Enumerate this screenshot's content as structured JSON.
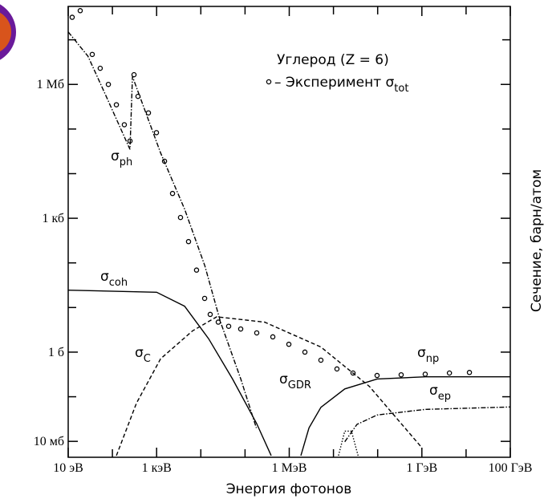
{
  "chart_data": {
    "type": "line",
    "x_title": "Энергия фотонов",
    "y_title": "Сечение, барн/атом",
    "annotation": "Углерод (Z = 6)",
    "xscale": "log",
    "yscale": "log",
    "xlim": [
      10,
      100000000000
    ],
    "ylim": [
      0.0044,
      56000000
    ],
    "xticks": [
      {
        "value": 10,
        "label": "10 эВ"
      },
      {
        "value": 1000,
        "label": "1 кэВ"
      },
      {
        "value": 1000000,
        "label": "1 МэВ"
      },
      {
        "value": 1000000000,
        "label": "1 ГэВ"
      },
      {
        "value": 100000000000,
        "label": "100 ГэВ"
      }
    ],
    "xminor": [
      100,
      10000,
      100000,
      10000000,
      100000000,
      10000000000
    ],
    "yticks": [
      {
        "value": 0.01,
        "label": "10 мб"
      },
      {
        "value": 1,
        "label": "1 б"
      },
      {
        "value": 1000,
        "label": "1 кб"
      },
      {
        "value": 1000000,
        "label": "1 Мб"
      }
    ],
    "yminor": [
      0.1,
      10,
      100,
      10000,
      100000,
      10000000
    ],
    "series": [
      {
        "name": "– Эксперимент σ",
        "sub": "tot",
        "style": "markers",
        "color": "#000000",
        "x": [
          12.3,
          18.7,
          35,
          53,
          81,
          123,
          186,
          250,
          308,
          379,
          653,
          991,
          1510,
          2290,
          3470,
          5270,
          8000,
          12200,
          16300,
          24800,
          42600,
          79800,
          184000,
          425000,
          980000,
          2260000,
          5200000,
          12000000,
          27700000,
          97000000,
          340000000,
          1190000000,
          4200000000,
          11900000000
        ],
        "values": [
          32000000,
          45000000,
          4700000,
          2300000,
          1000000,
          350000,
          125000,
          54000,
          1650000,
          540000,
          230000,
          83000,
          19000,
          3600,
          1040,
          300,
          69,
          16,
          7.0,
          4.7,
          3.8,
          3.3,
          2.7,
          2.2,
          1.5,
          1.0,
          0.66,
          0.42,
          0.34,
          0.3,
          0.31,
          0.32,
          0.34,
          0.35
        ]
      },
      {
        "name": "σ",
        "sub": "ph",
        "style": "dashdot",
        "color": "#000000",
        "x": [
          10,
          28,
          66,
          250,
          284,
          1230,
          4300,
          12300,
          28000,
          80000,
          180000
        ],
        "values": [
          15000000,
          4300000,
          660000,
          35000,
          1500000,
          29000,
          1600,
          86,
          4.7,
          0.25,
          0.02
        ]
      },
      {
        "name": "σ",
        "sub": "coh",
        "style": "solid",
        "color": "#000000",
        "x": [
          10,
          1000,
          4300,
          15000,
          52000,
          183000,
          390000
        ],
        "values": [
          24.5,
          22,
          10.7,
          2.0,
          0.25,
          0.025,
          0.0048
        ]
      },
      {
        "name": "σ",
        "sub": "C",
        "style": "dashed",
        "color": "#000000",
        "x": [
          123,
          350,
          1230,
          6500,
          23000,
          280000,
          5200000,
          65000000,
          1000000000
        ],
        "values": [
          0.0048,
          0.072,
          0.71,
          3.0,
          6.2,
          4.7,
          1.3,
          0.17,
          0.0072
        ]
      },
      {
        "name": "σ",
        "sub": "GDR",
        "style": "dotted",
        "color": "#000000",
        "x": [
          13000000,
          18000000,
          25500000,
          36000000
        ],
        "values": [
          0.0048,
          0.017,
          0.017,
          0.0048
        ]
      },
      {
        "name": "σ",
        "sub": "np",
        "style": "solid",
        "color": "#000000",
        "x": [
          1830000,
          2800000,
          5200000,
          18000000,
          97000000,
          1200000000,
          100000000000
        ],
        "values": [
          0.0048,
          0.02,
          0.058,
          0.15,
          0.25,
          0.28,
          0.28
        ]
      },
      {
        "name": "σ",
        "sub": "ep",
        "style": "dashdot",
        "color": "#000000",
        "x": [
          18000000,
          34000000,
          97000000,
          1200000000,
          100000000000
        ],
        "values": [
          0.0098,
          0.024,
          0.039,
          0.052,
          0.059
        ]
      }
    ]
  }
}
